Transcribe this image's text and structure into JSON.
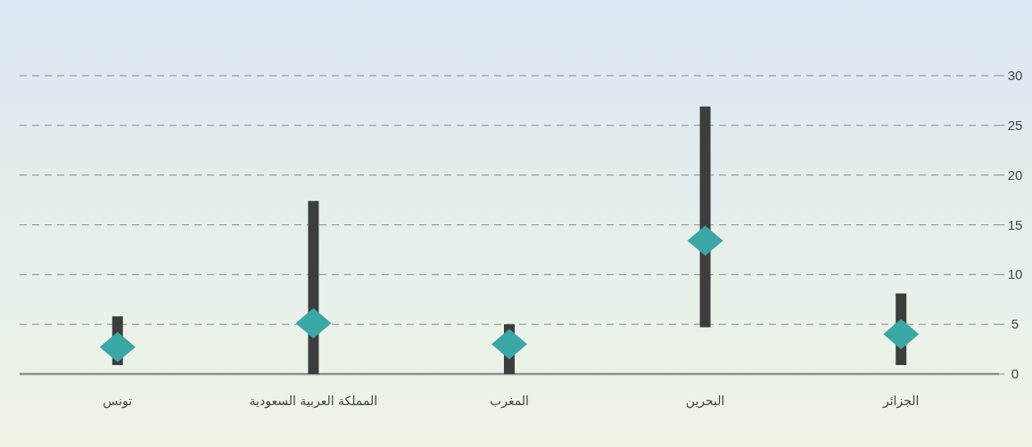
{
  "chart_data": {
    "type": "bar",
    "categories": [
      "تونس",
      "المملكة العربية السعودية",
      "المغرب",
      "البحرين",
      "الجزائر"
    ],
    "series": [
      {
        "color": "#3d3d3d",
        "base": [
          0.9,
          0,
          0,
          4.7,
          0.9
        ],
        "values": [
          4.9,
          17.4,
          5.0,
          22.2,
          7.2
        ]
      },
      {
        "type": "scatter",
        "marker": "diamond",
        "color": "#3aa6a6",
        "values": [
          2.7,
          5.1,
          3.0,
          13.4,
          4.0
        ]
      }
    ],
    "ylim": [
      0,
      30
    ],
    "yticks": [
      0,
      5,
      10,
      15,
      20,
      25,
      30
    ],
    "grid": "y"
  }
}
